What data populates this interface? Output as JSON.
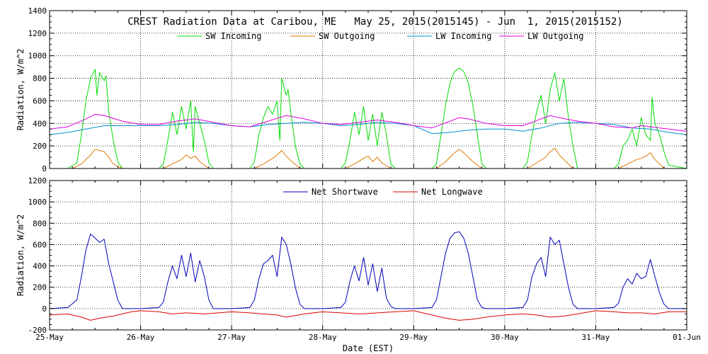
{
  "colors": {
    "sw_in": "#00dd00",
    "sw_out": "#e07800",
    "lw_in": "#0090d0",
    "lw_out": "#e000e0",
    "net_sw": "#0000bb",
    "net_lw": "#dd0000",
    "grid": "#000000"
  },
  "chart_data": [
    {
      "type": "line",
      "title": "CREST Radiation Data at Caribou, ME   May 25, 2015(2015145) - Jun  1, 2015(2015152)",
      "xlabel": "",
      "ylabel": "Radiation, W/m^2",
      "x_categories": [
        "25-May",
        "26-May",
        "27-May",
        "28-May",
        "29-May",
        "30-May",
        "31-May",
        "01-Jun"
      ],
      "xlim": [
        0,
        7
      ],
      "ylim": [
        0,
        1400
      ],
      "yticks": [
        0,
        200,
        400,
        600,
        800,
        1000,
        1200,
        1400
      ],
      "grid": true,
      "legend_position": "top-center",
      "series": [
        {
          "name": "SW Incoming",
          "color_key": "sw_in",
          "x": [
            0,
            0.2,
            0.3,
            0.35,
            0.4,
            0.45,
            0.5,
            0.52,
            0.55,
            0.6,
            0.62,
            0.65,
            0.7,
            0.75,
            0.8,
            1.0,
            1.2,
            1.25,
            1.3,
            1.35,
            1.4,
            1.45,
            1.5,
            1.55,
            1.58,
            1.6,
            1.65,
            1.7,
            1.75,
            1.8,
            2.0,
            2.2,
            2.25,
            2.3,
            2.35,
            2.4,
            2.45,
            2.5,
            2.53,
            2.55,
            2.6,
            2.62,
            2.65,
            2.7,
            2.75,
            2.8,
            3.0,
            3.2,
            3.25,
            3.3,
            3.35,
            3.4,
            3.45,
            3.5,
            3.55,
            3.6,
            3.65,
            3.7,
            3.75,
            3.8,
            4.0,
            4.2,
            4.25,
            4.3,
            4.35,
            4.4,
            4.45,
            4.5,
            4.55,
            4.6,
            4.65,
            4.7,
            4.75,
            4.8,
            5.0,
            5.2,
            5.25,
            5.3,
            5.35,
            5.4,
            5.45,
            5.5,
            5.55,
            5.6,
            5.65,
            5.7,
            5.75,
            5.8,
            6.0,
            6.2,
            6.25,
            6.3,
            6.35,
            6.4,
            6.45,
            6.5,
            6.55,
            6.6,
            6.62,
            6.65,
            6.7,
            6.75,
            6.8,
            7.0
          ],
          "values": [
            0,
            0,
            50,
            300,
            600,
            800,
            880,
            650,
            850,
            780,
            820,
            500,
            250,
            60,
            0,
            0,
            0,
            40,
            250,
            500,
            300,
            550,
            350,
            600,
            150,
            550,
            400,
            250,
            50,
            0,
            0,
            0,
            60,
            300,
            450,
            550,
            480,
            600,
            250,
            800,
            650,
            700,
            500,
            200,
            40,
            0,
            0,
            0,
            50,
            250,
            500,
            300,
            550,
            250,
            480,
            200,
            500,
            300,
            40,
            0,
            0,
            0,
            40,
            300,
            560,
            760,
            860,
            890,
            860,
            760,
            560,
            300,
            40,
            0,
            0,
            0,
            60,
            300,
            500,
            650,
            400,
            700,
            850,
            600,
            800,
            450,
            200,
            0,
            0,
            0,
            40,
            200,
            250,
            350,
            200,
            450,
            300,
            250,
            630,
            400,
            300,
            150,
            30,
            0
          ]
        },
        {
          "name": "SW Outgoing",
          "color_key": "sw_out",
          "x": [
            0,
            0.25,
            0.35,
            0.45,
            0.5,
            0.55,
            0.6,
            0.65,
            0.7,
            0.8,
            1.0,
            1.25,
            1.35,
            1.45,
            1.5,
            1.55,
            1.6,
            1.65,
            1.75,
            2.0,
            2.25,
            2.35,
            2.45,
            2.5,
            2.55,
            2.6,
            2.65,
            2.75,
            3.0,
            3.25,
            3.35,
            3.45,
            3.5,
            3.55,
            3.6,
            3.65,
            3.75,
            4.0,
            4.25,
            4.35,
            4.45,
            4.5,
            4.55,
            4.65,
            4.75,
            5.0,
            5.25,
            5.35,
            5.45,
            5.5,
            5.55,
            5.6,
            5.65,
            5.75,
            6.0,
            6.25,
            6.35,
            6.45,
            6.5,
            6.55,
            6.6,
            6.65,
            6.75,
            7.0
          ],
          "values": [
            0,
            0,
            40,
            120,
            170,
            160,
            150,
            100,
            40,
            0,
            0,
            0,
            40,
            80,
            120,
            90,
            110,
            60,
            0,
            0,
            0,
            40,
            90,
            120,
            160,
            110,
            70,
            0,
            0,
            0,
            40,
            90,
            110,
            60,
            100,
            50,
            0,
            0,
            0,
            60,
            140,
            170,
            140,
            60,
            0,
            0,
            0,
            50,
            100,
            150,
            180,
            120,
            80,
            0,
            0,
            0,
            40,
            80,
            90,
            110,
            140,
            80,
            0,
            0
          ]
        },
        {
          "name": "LW Incoming",
          "color_key": "lw_in",
          "x": [
            0,
            0.2,
            0.4,
            0.6,
            0.8,
            1.0,
            1.2,
            1.4,
            1.6,
            1.8,
            2.0,
            2.2,
            2.4,
            2.6,
            2.8,
            3.0,
            3.2,
            3.4,
            3.6,
            3.8,
            4.0,
            4.2,
            4.4,
            4.6,
            4.8,
            5.0,
            5.2,
            5.4,
            5.6,
            5.8,
            6.0,
            6.2,
            6.4,
            6.6,
            6.8,
            7.0
          ],
          "values": [
            300,
            320,
            350,
            380,
            380,
            380,
            380,
            390,
            410,
            400,
            380,
            370,
            390,
            400,
            410,
            400,
            380,
            390,
            410,
            400,
            380,
            310,
            320,
            340,
            350,
            350,
            330,
            360,
            400,
            410,
            400,
            390,
            360,
            350,
            320,
            300
          ]
        },
        {
          "name": "LW Outgoing",
          "color_key": "lw_out",
          "x": [
            0,
            0.2,
            0.4,
            0.5,
            0.6,
            0.8,
            1.0,
            1.2,
            1.4,
            1.6,
            1.8,
            2.0,
            2.2,
            2.4,
            2.6,
            2.8,
            3.0,
            3.2,
            3.4,
            3.6,
            3.8,
            4.0,
            4.2,
            4.4,
            4.5,
            4.6,
            4.8,
            5.0,
            5.2,
            5.4,
            5.5,
            5.6,
            5.8,
            6.0,
            6.2,
            6.4,
            6.5,
            6.6,
            6.8,
            7.0
          ],
          "values": [
            350,
            370,
            440,
            480,
            470,
            420,
            390,
            390,
            420,
            440,
            410,
            380,
            370,
            420,
            470,
            440,
            400,
            390,
            410,
            430,
            410,
            380,
            360,
            420,
            450,
            440,
            400,
            380,
            380,
            440,
            470,
            450,
            420,
            400,
            370,
            360,
            380,
            370,
            350,
            330
          ]
        }
      ]
    },
    {
      "type": "line",
      "title": "",
      "xlabel": "Date (EST)",
      "ylabel": "Radiation, W/m^2",
      "x_categories": [
        "25-May",
        "26-May",
        "27-May",
        "28-May",
        "29-May",
        "30-May",
        "31-May",
        "01-Jun"
      ],
      "xlim": [
        0,
        7
      ],
      "ylim": [
        -200,
        1200
      ],
      "yticks": [
        -200,
        0,
        200,
        400,
        600,
        800,
        1000,
        1200
      ],
      "grid": true,
      "legend_position": "top-center",
      "series": [
        {
          "name": "Net Shortwave",
          "color_key": "net_sw",
          "x": [
            0,
            0.2,
            0.3,
            0.35,
            0.4,
            0.45,
            0.5,
            0.55,
            0.6,
            0.65,
            0.7,
            0.75,
            0.8,
            1.0,
            1.2,
            1.25,
            1.3,
            1.35,
            1.4,
            1.45,
            1.5,
            1.55,
            1.6,
            1.65,
            1.7,
            1.75,
            1.8,
            2.0,
            2.2,
            2.25,
            2.3,
            2.35,
            2.4,
            2.45,
            2.5,
            2.55,
            2.6,
            2.65,
            2.7,
            2.75,
            2.8,
            3.0,
            3.2,
            3.25,
            3.3,
            3.35,
            3.4,
            3.45,
            3.5,
            3.55,
            3.6,
            3.65,
            3.7,
            3.75,
            3.8,
            4.0,
            4.2,
            4.25,
            4.3,
            4.35,
            4.4,
            4.45,
            4.5,
            4.55,
            4.6,
            4.65,
            4.7,
            4.75,
            4.8,
            5.0,
            5.2,
            5.25,
            5.3,
            5.35,
            5.4,
            5.45,
            5.5,
            5.55,
            5.6,
            5.65,
            5.7,
            5.75,
            5.8,
            6.0,
            6.2,
            6.25,
            6.3,
            6.35,
            6.4,
            6.45,
            6.5,
            6.55,
            6.6,
            6.65,
            6.7,
            6.75,
            6.8,
            7.0
          ],
          "values": [
            0,
            10,
            80,
            300,
            550,
            700,
            660,
            620,
            650,
            420,
            250,
            80,
            0,
            0,
            10,
            60,
            250,
            400,
            280,
            500,
            300,
            520,
            250,
            450,
            300,
            80,
            0,
            0,
            10,
            80,
            280,
            420,
            450,
            500,
            300,
            670,
            600,
            420,
            200,
            40,
            0,
            0,
            10,
            60,
            260,
            400,
            260,
            480,
            220,
            420,
            160,
            380,
            100,
            20,
            0,
            0,
            10,
            80,
            300,
            520,
            660,
            710,
            720,
            660,
            520,
            300,
            80,
            10,
            0,
            0,
            10,
            80,
            300,
            420,
            480,
            300,
            670,
            600,
            640,
            420,
            200,
            40,
            0,
            0,
            10,
            50,
            200,
            280,
            230,
            330,
            280,
            300,
            460,
            300,
            150,
            40,
            0,
            0
          ]
        },
        {
          "name": "Net Longwave",
          "color_key": "net_lw",
          "x": [
            0,
            0.2,
            0.35,
            0.45,
            0.55,
            0.7,
            0.9,
            1.0,
            1.2,
            1.35,
            1.5,
            1.7,
            2.0,
            2.2,
            2.35,
            2.5,
            2.6,
            2.8,
            3.0,
            3.2,
            3.4,
            3.6,
            3.8,
            4.0,
            4.2,
            4.35,
            4.5,
            4.65,
            4.8,
            5.0,
            5.2,
            5.35,
            5.5,
            5.65,
            5.8,
            6.0,
            6.2,
            6.35,
            6.5,
            6.65,
            6.8,
            7.0
          ],
          "values": [
            -60,
            -50,
            -80,
            -110,
            -90,
            -70,
            -30,
            -20,
            -30,
            -50,
            -40,
            -50,
            -30,
            -40,
            -50,
            -60,
            -80,
            -50,
            -30,
            -40,
            -50,
            -40,
            -30,
            -20,
            -60,
            -90,
            -110,
            -100,
            -80,
            -60,
            -50,
            -60,
            -80,
            -70,
            -50,
            -20,
            -30,
            -40,
            -40,
            -50,
            -30,
            -30
          ]
        }
      ]
    }
  ]
}
